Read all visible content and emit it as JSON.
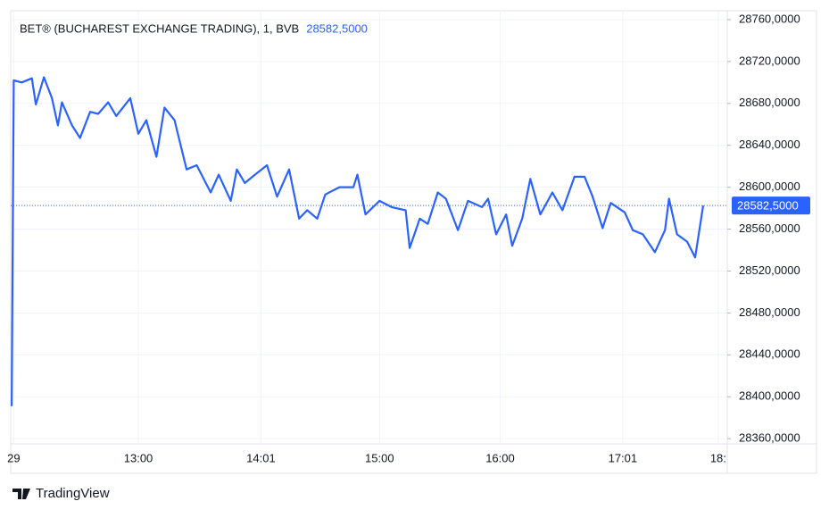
{
  "chart_data": {
    "type": "line",
    "title": "BET® (BUCHAREST EXCHANGE TRADING), 1, BVB",
    "last_value": 28582.5,
    "last_value_label": "28582,5000",
    "x": [
      717,
      718,
      722,
      727,
      729,
      733,
      737,
      740,
      742,
      747,
      751,
      756,
      760,
      765,
      769,
      776,
      780,
      784,
      789,
      793,
      798,
      804,
      809,
      816,
      820,
      826,
      829,
      833,
      838,
      844,
      849,
      855,
      860,
      864,
      869,
      873,
      880,
      887,
      889,
      893,
      900,
      906,
      913,
      915,
      920,
      924,
      929,
      933,
      939,
      944,
      951,
      954,
      958,
      963,
      966,
      971,
      975,
      980,
      986,
      991,
      997,
      1002,
      1006,
      1011,
      1015,
      1022,
      1026,
      1031,
      1037,
      1042,
      1044,
      1048,
      1053,
      1057,
      1061
    ],
    "series": [
      {
        "name": "BET",
        "color": "#2962ff",
        "values": [
          28391,
          28702,
          28700,
          28704,
          28679,
          28705,
          28685,
          28659,
          28681,
          28659,
          28647,
          28672,
          28670,
          28681,
          28668,
          28685,
          28651,
          28664,
          28629,
          28676,
          28664,
          28617,
          28621,
          28595,
          28612,
          28587,
          28617,
          28604,
          28612,
          28621,
          28591,
          28617,
          28570,
          28578,
          28570,
          28593,
          28600,
          28600,
          28612,
          28574,
          28587,
          28581,
          28578,
          28542,
          28570,
          28565,
          28595,
          28589,
          28559,
          28587,
          28581,
          28589,
          28555,
          28574,
          28544,
          28570,
          28608,
          28574,
          28595,
          28578,
          28610,
          28610,
          28591,
          28561,
          28585,
          28576,
          28559,
          28555,
          28538,
          28559,
          28589,
          28555,
          28548,
          28533,
          28582.5
        ]
      }
    ],
    "xlim": [
      716.5,
      1073
    ],
    "xticks": [
      {
        "value": 718,
        "label": "29"
      },
      {
        "value": 780,
        "label": "13:00"
      },
      {
        "value": 841,
        "label": "14:01"
      },
      {
        "value": 900,
        "label": "15:00"
      },
      {
        "value": 960,
        "label": "16:00"
      },
      {
        "value": 1021,
        "label": "17:01"
      },
      {
        "value": 1068.5,
        "label": "18:"
      }
    ],
    "ylim": [
      28355,
      28768.5
    ],
    "yticks": [
      {
        "value": 28360,
        "label": "28360,0000"
      },
      {
        "value": 28400,
        "label": "28400,0000"
      },
      {
        "value": 28440,
        "label": "28440,0000"
      },
      {
        "value": 28480,
        "label": "28480,0000"
      },
      {
        "value": 28520,
        "label": "28520,0000"
      },
      {
        "value": 28560,
        "label": "28560,0000"
      },
      {
        "value": 28600,
        "label": "28600,0000"
      },
      {
        "value": 28640,
        "label": "28640,0000"
      },
      {
        "value": 28680,
        "label": "28680,0000"
      },
      {
        "value": 28720,
        "label": "28720,0000"
      },
      {
        "value": 28760,
        "label": "28760,0000"
      }
    ],
    "grid": true
  },
  "brand": "TradingView"
}
